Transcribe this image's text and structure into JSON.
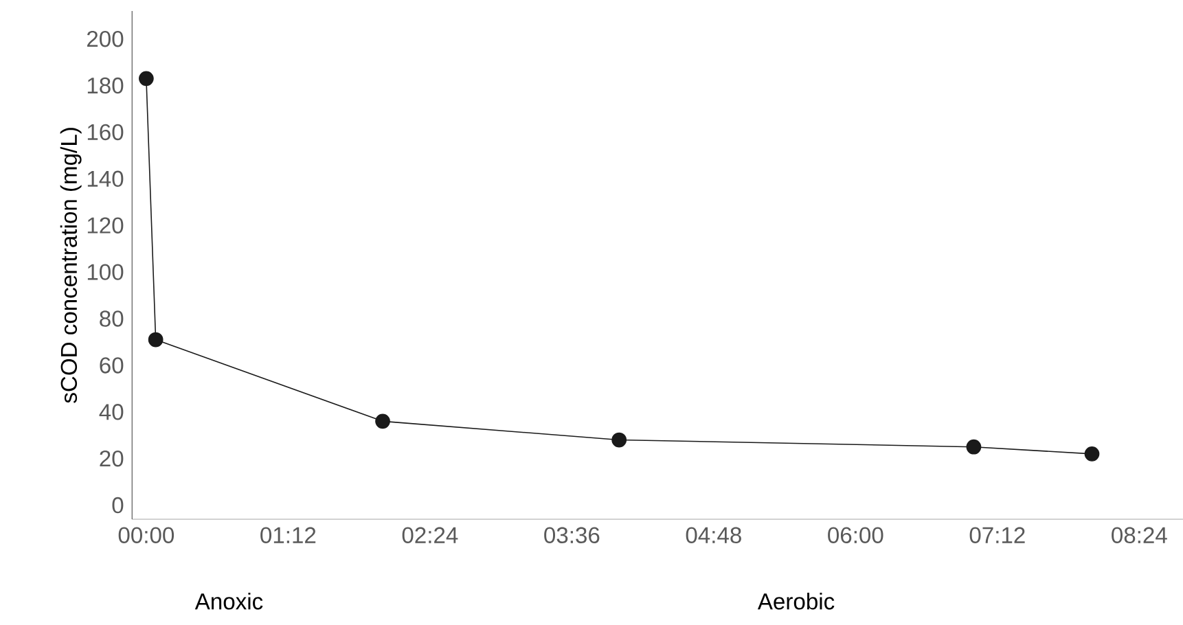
{
  "chart_data": {
    "type": "line",
    "ylabel": "sCOD concentration (mg/L)",
    "x": [
      0,
      0.08,
      2.0,
      4.0,
      7.0,
      8.0
    ],
    "series": [
      {
        "color": "#1a1a1a",
        "values": [
          183,
          71,
          36,
          28,
          25,
          22
        ]
      }
    ],
    "xlim": [
      -0.12,
      8.77
    ],
    "ylim": [
      -6,
      212
    ],
    "xticks": [
      {
        "value": 0,
        "label": "00:00"
      },
      {
        "value": 1.2,
        "label": "01:12"
      },
      {
        "value": 2.4,
        "label": "02:24"
      },
      {
        "value": 3.6,
        "label": "03:36"
      },
      {
        "value": 4.8,
        "label": "04:48"
      },
      {
        "value": 6.0,
        "label": "06:00"
      },
      {
        "value": 7.2,
        "label": "07:12"
      },
      {
        "value": 8.4,
        "label": "08:24"
      }
    ],
    "yticks": [
      0,
      20,
      40,
      60,
      80,
      100,
      120,
      140,
      160,
      180,
      200
    ],
    "annotations": [
      "Anoxic",
      "Aerobic"
    ],
    "marker": "circle",
    "line_style": "solid"
  }
}
